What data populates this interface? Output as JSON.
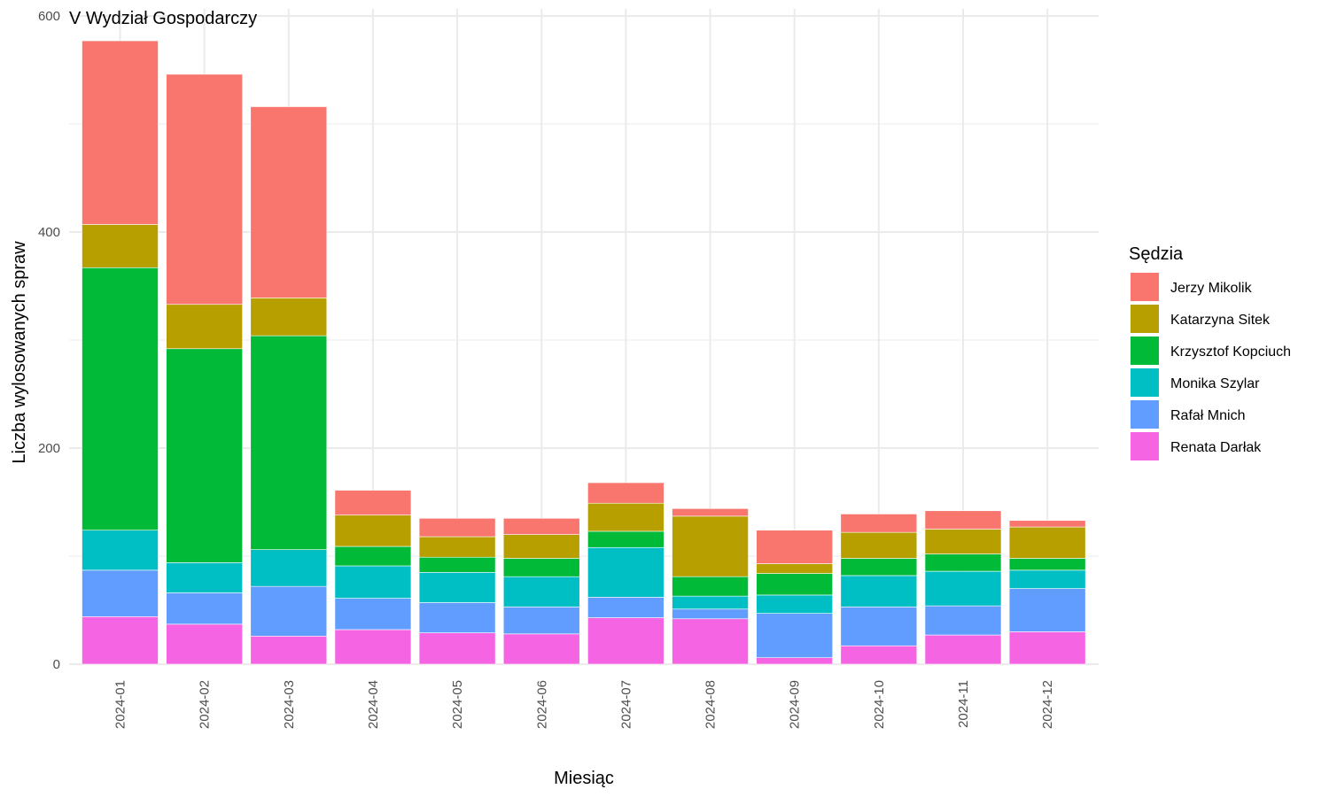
{
  "chart_data": {
    "type": "bar",
    "stacked": true,
    "title": "V Wydział Gospodarczy",
    "xlabel": "Miesiąc",
    "ylabel": "Liczba wylosowanych spraw",
    "ylim": [
      0,
      600
    ],
    "yticks": [
      0,
      200,
      400,
      600
    ],
    "grid": true,
    "legend": {
      "title": "Sędzia",
      "placement": "right"
    },
    "categories": [
      "2024-01",
      "2024-02",
      "2024-03",
      "2024-04",
      "2024-05",
      "2024-06",
      "2024-07",
      "2024-08",
      "2024-09",
      "2024-10",
      "2024-11",
      "2024-12"
    ],
    "series": [
      {
        "name": "Renata Darłak",
        "color": "#F564E3",
        "values": [
          44,
          37,
          26,
          32,
          29,
          28,
          43,
          42,
          6,
          17,
          27,
          30
        ]
      },
      {
        "name": "Rafał Mnich",
        "color": "#619CFF",
        "values": [
          43,
          29,
          46,
          29,
          28,
          25,
          19,
          9,
          41,
          36,
          27,
          40
        ]
      },
      {
        "name": "Monika Szylar",
        "color": "#00BFC4",
        "values": [
          37,
          28,
          34,
          30,
          28,
          28,
          46,
          12,
          17,
          29,
          32,
          17
        ]
      },
      {
        "name": "Krzysztof Kopciuch",
        "color": "#00BA38",
        "values": [
          243,
          198,
          198,
          18,
          14,
          17,
          15,
          18,
          20,
          16,
          16,
          11
        ]
      },
      {
        "name": "Katarzyna Sitek",
        "color": "#B79F00",
        "values": [
          40,
          41,
          35,
          29,
          19,
          22,
          26,
          56,
          9,
          24,
          23,
          29
        ]
      },
      {
        "name": "Jerzy Mikolik",
        "color": "#F8766D",
        "values": [
          170,
          213,
          177,
          23,
          17,
          15,
          19,
          7,
          31,
          17,
          17,
          6
        ]
      }
    ]
  }
}
